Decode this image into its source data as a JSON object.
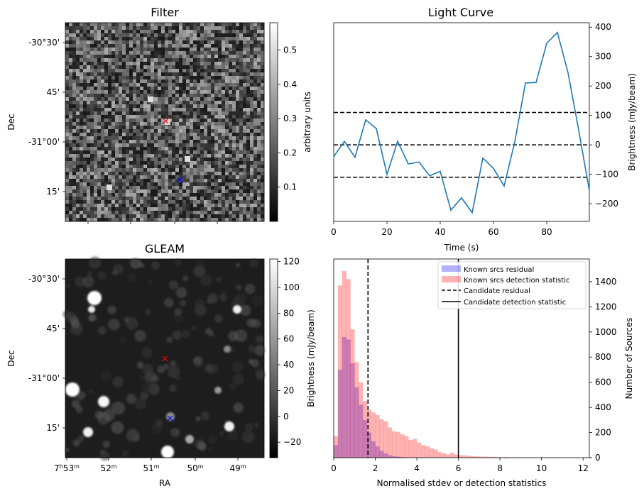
{
  "chart_data": [
    {
      "panel": "filter",
      "type": "heatmap",
      "title": "Filter",
      "ylabel": "Dec",
      "ytick_labels": [
        "-30°30'",
        "45'",
        "-31°00'",
        "15'"
      ],
      "colorbar": {
        "label": "arbitrary units",
        "ticks": [
          0.1,
          0.2,
          0.3,
          0.4,
          0.5
        ],
        "tick_labels": [
          "0.1",
          "0.2",
          "0.3",
          "0.4",
          "0.5"
        ],
        "range": [
          0.0,
          0.58
        ]
      },
      "markers": [
        {
          "name": "candidate",
          "color": "#ff0000",
          "symbol": "x"
        },
        {
          "name": "reference",
          "color": "#0000ff",
          "symbol": "x"
        }
      ]
    },
    {
      "panel": "light-curve",
      "type": "line",
      "title": "Light Curve",
      "xlabel": "Time (s)",
      "ylabel": "Brightness (mJy/beam)",
      "xlim": [
        0,
        96
      ],
      "ylim": [
        -260,
        415
      ],
      "xtick_labels": [
        "0",
        "20",
        "40",
        "60",
        "80"
      ],
      "ytick_labels": [
        "-200",
        "-100",
        "0",
        "100",
        "200",
        "300",
        "400"
      ],
      "x": [
        0,
        4,
        8,
        12,
        16,
        20,
        24,
        28,
        32,
        36,
        40,
        44,
        48,
        52,
        56,
        60,
        64,
        68,
        72,
        76,
        80,
        84,
        88,
        92,
        96
      ],
      "values": [
        -40,
        12,
        -42,
        85,
        55,
        -100,
        12,
        -65,
        -58,
        -105,
        -90,
        -222,
        -180,
        -230,
        -45,
        -80,
        -140,
        10,
        210,
        212,
        345,
        382,
        245,
        50,
        -155
      ],
      "hlines": [
        110,
        0,
        -110
      ],
      "color": "#1f77b4"
    },
    {
      "panel": "gleam",
      "type": "heatmap",
      "title": "GLEAM",
      "xlabel": "RA",
      "ylabel": "Dec",
      "xtick_labels": [
        "7h53m",
        "52m",
        "51m",
        "50m",
        "49m"
      ],
      "ytick_labels": [
        "-30°30'",
        "45'",
        "-31°00'",
        "15'"
      ],
      "colorbar": {
        "label": "Brightness (mJy/beam)",
        "ticks": [
          -20,
          0,
          20,
          40,
          60,
          80,
          100,
          120
        ],
        "tick_labels": [
          "−20",
          "0",
          "20",
          "40",
          "60",
          "80",
          "100",
          "120"
        ],
        "range": [
          -32,
          122
        ]
      },
      "markers": [
        {
          "name": "candidate",
          "color": "#ff0000",
          "symbol": "x"
        },
        {
          "name": "reference",
          "color": "#0000ff",
          "symbol": "x"
        }
      ]
    },
    {
      "panel": "histogram",
      "type": "bar",
      "xlabel": "Normalised stdev or detection statistics",
      "ylabel": "Number of Sources",
      "xlim": [
        0,
        12.3
      ],
      "ylim": [
        0,
        1580
      ],
      "xtick_labels": [
        "0",
        "2",
        "4",
        "6",
        "8",
        "10",
        "12"
      ],
      "ytick_labels": [
        "0",
        "200",
        "400",
        "600",
        "800",
        "1000",
        "1200",
        "1400"
      ],
      "bin_width": 0.2,
      "series": [
        {
          "name": "Known srcs residual",
          "color": "#0000ff",
          "values": [
            100,
            700,
            960,
            940,
            750,
            560,
            420,
            300,
            200,
            130,
            90,
            55,
            35,
            20,
            12,
            8,
            5,
            3,
            2,
            1
          ]
        },
        {
          "name": "Known srcs detection statistic",
          "color": "#ff0000",
          "values": [
            170,
            1370,
            1485,
            1420,
            1020,
            760,
            600,
            450,
            380,
            360,
            340,
            305,
            290,
            240,
            210,
            205,
            185,
            170,
            140,
            150,
            120,
            100,
            90,
            75,
            65,
            45,
            35,
            25,
            40,
            25,
            20,
            18,
            15,
            12,
            10,
            9,
            8,
            7,
            6,
            5,
            4,
            5,
            3,
            4,
            3,
            3,
            2,
            3,
            2,
            2,
            2,
            1,
            1,
            2,
            1,
            1,
            1,
            1,
            1,
            1
          ]
        }
      ],
      "vlines": [
        {
          "name": "Candidate residual",
          "x": 1.65,
          "style": "dashed"
        },
        {
          "name": "Candidate detection statistic",
          "x": 6.0,
          "style": "solid"
        }
      ]
    }
  ]
}
